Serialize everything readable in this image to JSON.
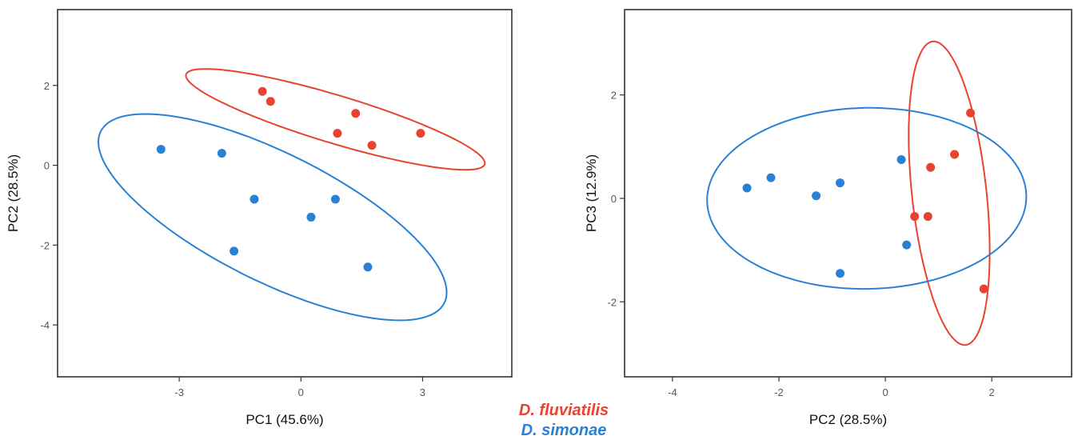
{
  "chart_data": [
    {
      "type": "scatter",
      "xlabel": "PC1 (45.6%)",
      "ylabel": "PC2 (28.5%)",
      "xlim": [
        -6,
        5.2
      ],
      "ylim": [
        -5.3,
        3.9
      ],
      "xticks": [
        -3,
        0,
        3
      ],
      "yticks": [
        -4,
        -2,
        0,
        2
      ],
      "grid": false,
      "series": [
        {
          "name": "D. fluviatilis",
          "color": "#e8432f",
          "x": [
            -0.95,
            -0.75,
            1.35,
            0.9,
            1.75,
            2.95
          ],
          "y": [
            1.85,
            1.6,
            1.3,
            0.8,
            0.5,
            0.8
          ],
          "ellipse": {
            "cx": 0.85,
            "cy": 1.15,
            "rx": 3.85,
            "ry": 0.6,
            "angle_deg": -17
          }
        },
        {
          "name": "D. simonae",
          "color": "#2a80d5",
          "x": [
            -3.45,
            -1.95,
            -1.15,
            0.85,
            0.25,
            -1.65,
            1.65
          ],
          "y": [
            0.4,
            0.3,
            -0.85,
            -0.85,
            -1.3,
            -2.15,
            -2.55
          ],
          "ellipse": {
            "cx": -0.7,
            "cy": -1.3,
            "rx": 4.75,
            "ry": 1.6,
            "angle_deg": -27
          }
        }
      ]
    },
    {
      "type": "scatter",
      "xlabel": "PC2 (28.5%)",
      "ylabel": "PC3 (12.9%)",
      "xlim": [
        -4.9,
        3.5
      ],
      "ylim": [
        -3.45,
        3.65
      ],
      "xticks": [
        -4,
        -2,
        0,
        2
      ],
      "yticks": [
        -2,
        0,
        2
      ],
      "grid": false,
      "series": [
        {
          "name": "D. fluviatilis",
          "color": "#e8432f",
          "x": [
            1.6,
            1.3,
            0.85,
            0.55,
            0.8,
            1.85
          ],
          "y": [
            1.65,
            0.85,
            0.6,
            -0.35,
            -0.35,
            -1.75
          ],
          "ellipse": {
            "cx": 1.2,
            "cy": 0.1,
            "rx": 0.7,
            "ry": 2.95,
            "angle_deg": 6
          }
        },
        {
          "name": "D. simonae",
          "color": "#2a80d5",
          "x": [
            -2.6,
            -2.15,
            -1.3,
            -0.85,
            0.3,
            0.4,
            -0.85
          ],
          "y": [
            0.2,
            0.4,
            0.05,
            0.3,
            0.75,
            -0.9,
            -1.45
          ],
          "ellipse": {
            "cx": -0.35,
            "cy": 0.0,
            "rx": 3.0,
            "ry": 1.75,
            "angle_deg": 1
          }
        }
      ]
    }
  ],
  "legend": {
    "placement": "bottom-center",
    "entries": [
      {
        "label": "D. fluviatilis",
        "color": "#e8432f"
      },
      {
        "label": "D. simonae",
        "color": "#2a80d5"
      }
    ]
  }
}
